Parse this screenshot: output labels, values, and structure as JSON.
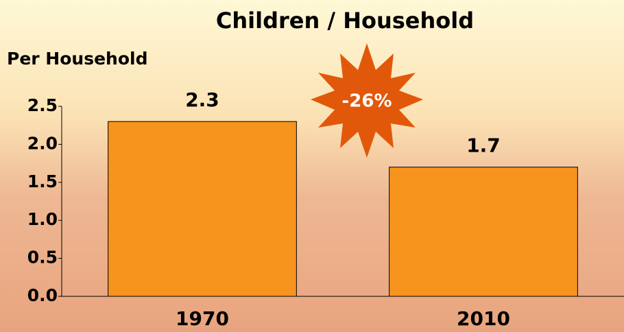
{
  "chart_data": {
    "type": "bar",
    "title": "Children / Household",
    "y_label": "Per Household",
    "categories": [
      "1970",
      "2010"
    ],
    "values": [
      2.3,
      1.7
    ],
    "color": "#f7941d",
    "ylim": [
      0,
      2.5
    ],
    "yticks": [
      {
        "value": 0,
        "label": "0.0"
      },
      0.5,
      {
        "value": 1,
        "label": "1.0"
      },
      1.5,
      {
        "value": 2,
        "label": "2.0"
      },
      2.5
    ],
    "annotation": "-26%"
  }
}
